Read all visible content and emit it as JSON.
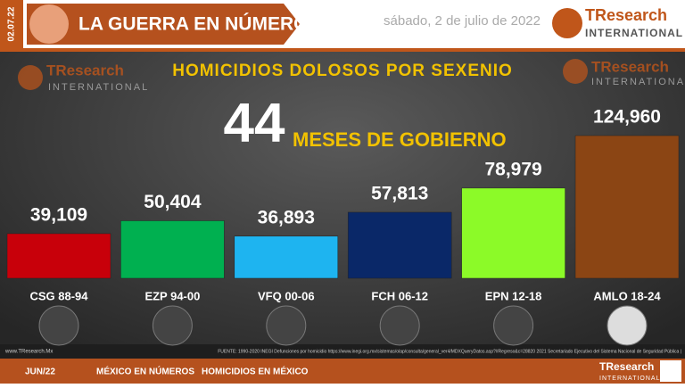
{
  "header": {
    "title": "LA GUERRA EN NÚMEROS",
    "date_code": "02.07.22",
    "date": "sábado, 2 de julio de 2022",
    "logo_name": "TResearch",
    "logo_sub": "INTERNATIONAL"
  },
  "chart_data": {
    "type": "bar",
    "title": "HOMICIDIOS DOLOSOS POR SEXENIO",
    "annotation_number": "44",
    "annotation_text": "MESES DE GOBIERNO",
    "categories": [
      "CSG 88-94",
      "EZP 94-00",
      "VFQ 00-06",
      "FCH 06-12",
      "EPN 12-18",
      "AMLO 18-24"
    ],
    "values": [
      39109,
      50404,
      36893,
      57813,
      78979,
      124960
    ],
    "value_labels": [
      "39,109",
      "50,404",
      "36,893",
      "57,813",
      "78,979",
      "124,960"
    ],
    "colors": [
      "#c8000a",
      "#00b050",
      "#1eb4f0",
      "#0a2868",
      "#8cfa28",
      "#8b4514"
    ]
  },
  "footer": {
    "site": "www.TResearch.Mx",
    "source": "FUENTE: 1990-2020 INEGI Defunciones por homicidio https://www.inegi.org.mx/sistemas/olap/consulta/general_ver4/MDXQueryDatos.asp?#Regreso&c=28820   2021 Secretariado Ejecutivo del Sistema Nacional de Seguridad Pública |",
    "month": "JUN/22",
    "link1": "MÉXICO EN NÚMEROS",
    "link2": "HOMICIDIOS EN MÉXICO"
  }
}
